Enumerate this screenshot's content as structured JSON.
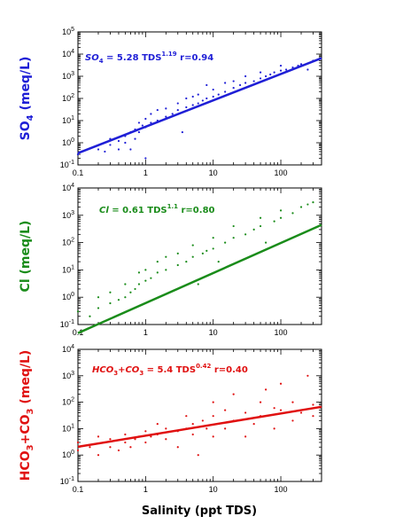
{
  "chart_data": [
    {
      "type": "scatter",
      "xlabel": "",
      "ylabel": "SO4 (meq/L)",
      "y_species": "SO",
      "y_sub": "4",
      "y_unit": " (meq/L)",
      "x_scale": "log",
      "y_scale": "log",
      "xlim": [
        0.1,
        400
      ],
      "ylim": [
        0.1,
        100000
      ],
      "xtick_labels": [
        "0.1",
        "1",
        "10",
        "100"
      ],
      "ytick_labels": [
        "10-1",
        "100",
        "101",
        "102",
        "103",
        "104",
        "105"
      ],
      "color": "#1f1fd6",
      "fit": {
        "a": 5.28,
        "b": 1.19
      },
      "equation": {
        "lhs": "SO",
        "lhs_sub": "4",
        "mid": " = 5.28 TDS",
        "exp": "1.19",
        "r": "r=0.94"
      },
      "points": [
        [
          0.1,
          0.3
        ],
        [
          0.2,
          0.5
        ],
        [
          0.25,
          0.4
        ],
        [
          0.3,
          0.8
        ],
        [
          0.3,
          1.5
        ],
        [
          0.4,
          0.5
        ],
        [
          0.4,
          1.2
        ],
        [
          0.5,
          1.0
        ],
        [
          0.5,
          2.0
        ],
        [
          0.6,
          0.5
        ],
        [
          0.6,
          3.0
        ],
        [
          0.7,
          1.5
        ],
        [
          0.7,
          4.0
        ],
        [
          0.8,
          3.0
        ],
        [
          0.8,
          8.0
        ],
        [
          0.9,
          6.0
        ],
        [
          1.0,
          0.2
        ],
        [
          1.0,
          5.0
        ],
        [
          1.0,
          12.0
        ],
        [
          1.2,
          8.0
        ],
        [
          1.2,
          20.0
        ],
        [
          1.5,
          10.0
        ],
        [
          1.5,
          30.0
        ],
        [
          2.0,
          15.0
        ],
        [
          2.0,
          35.0
        ],
        [
          2.5,
          20.0
        ],
        [
          3.0,
          30.0
        ],
        [
          3.0,
          60.0
        ],
        [
          3.5,
          3.0
        ],
        [
          4.0,
          40.0
        ],
        [
          4.0,
          100.0
        ],
        [
          5.0,
          50.0
        ],
        [
          5.0,
          120.0
        ],
        [
          6.0,
          60.0
        ],
        [
          6.0,
          150.0
        ],
        [
          7.0,
          80.0
        ],
        [
          8.0,
          100.0
        ],
        [
          8.0,
          400.0
        ],
        [
          10.0,
          120.0
        ],
        [
          10.0,
          250.0
        ],
        [
          12.0,
          150.0
        ],
        [
          15.0,
          200.0
        ],
        [
          15.0,
          500.0
        ],
        [
          20.0,
          300.0
        ],
        [
          20.0,
          600.0
        ],
        [
          25.0,
          400.0
        ],
        [
          30.0,
          500.0
        ],
        [
          30.0,
          1000.0
        ],
        [
          40.0,
          600.0
        ],
        [
          50.0,
          800.0
        ],
        [
          50.0,
          1500.0
        ],
        [
          60.0,
          1000.0
        ],
        [
          70.0,
          1200.0
        ],
        [
          80.0,
          1500.0
        ],
        [
          100.0,
          1800.0
        ],
        [
          100.0,
          3000.0
        ],
        [
          120.0,
          2000.0
        ],
        [
          150.0,
          2500.0
        ],
        [
          180.0,
          3000.0
        ],
        [
          200.0,
          3500.0
        ],
        [
          250.0,
          2000.0
        ],
        [
          300.0,
          5000.0
        ]
      ]
    },
    {
      "type": "scatter",
      "xlabel": "",
      "ylabel": "Cl (meq/L)",
      "y_species": "Cl",
      "y_sub": "",
      "y_unit": " (meq/L)",
      "x_scale": "log",
      "y_scale": "log",
      "xlim": [
        0.1,
        400
      ],
      "ylim": [
        0.1,
        10000
      ],
      "xtick_labels": [
        "0.1",
        "1",
        "10",
        "100"
      ],
      "ytick_labels": [
        "10-1",
        "100",
        "101",
        "102",
        "103",
        "104"
      ],
      "color": "#1a8c1a",
      "fit": {
        "a": 0.61,
        "b": 1.1
      },
      "equation": {
        "lhs": "Cl",
        "lhs_sub": "",
        "mid": " = 0.61 TDS",
        "exp": "1.1",
        "r": "r=0.80"
      },
      "points": [
        [
          0.1,
          0.3
        ],
        [
          0.15,
          0.2
        ],
        [
          0.2,
          0.4
        ],
        [
          0.2,
          1.0
        ],
        [
          0.3,
          0.6
        ],
        [
          0.3,
          1.5
        ],
        [
          0.4,
          0.8
        ],
        [
          0.5,
          1.0
        ],
        [
          0.5,
          3.0
        ],
        [
          0.6,
          1.5
        ],
        [
          0.7,
          2.0
        ],
        [
          0.8,
          3.0
        ],
        [
          0.8,
          8.0
        ],
        [
          1.0,
          4.0
        ],
        [
          1.0,
          10.0
        ],
        [
          1.2,
          5.0
        ],
        [
          1.5,
          8.0
        ],
        [
          1.5,
          20.0
        ],
        [
          2.0,
          10.0
        ],
        [
          2.0,
          30.0
        ],
        [
          3.0,
          15.0
        ],
        [
          3.0,
          40.0
        ],
        [
          4.0,
          20.0
        ],
        [
          5.0,
          30.0
        ],
        [
          5.0,
          80.0
        ],
        [
          6.0,
          3.0
        ],
        [
          7.0,
          40.0
        ],
        [
          8.0,
          50.0
        ],
        [
          10.0,
          60.0
        ],
        [
          10.0,
          150.0
        ],
        [
          12.0,
          20.0
        ],
        [
          15.0,
          100.0
        ],
        [
          20.0,
          150.0
        ],
        [
          20.0,
          400.0
        ],
        [
          30.0,
          200.0
        ],
        [
          40.0,
          300.0
        ],
        [
          50.0,
          400.0
        ],
        [
          50.0,
          800.0
        ],
        [
          60.0,
          100.0
        ],
        [
          80.0,
          600.0
        ],
        [
          100.0,
          800.0
        ],
        [
          100.0,
          1500.0
        ],
        [
          150.0,
          1200.0
        ],
        [
          200.0,
          2000.0
        ],
        [
          250.0,
          2500.0
        ],
        [
          300.0,
          3000.0
        ]
      ]
    },
    {
      "type": "scatter",
      "xlabel": "Salinity (ppt TDS)",
      "ylabel": "HCO3+CO3 (meq/L)",
      "y_species": "HCO",
      "y_sub": "3",
      "y_unit": "+CO3 (meq/L)",
      "x_scale": "log",
      "y_scale": "log",
      "xlim": [
        0.1,
        400
      ],
      "ylim": [
        0.1,
        10000
      ],
      "xtick_labels": [
        "0.1",
        "1",
        "10",
        "100"
      ],
      "ytick_labels": [
        "10-1",
        "100",
        "101",
        "102",
        "103",
        "104"
      ],
      "color": "#e01010",
      "fit": {
        "a": 5.4,
        "b": 0.42
      },
      "equation": {
        "lhs": "HCO",
        "lhs_sub": "3",
        "mid": "+CO",
        "mid_sub": "3",
        "mid2": " = 5.4 TDS",
        "exp": "0.42",
        "r": "r=0.40"
      },
      "points": [
        [
          0.1,
          1.5
        ],
        [
          0.1,
          3.0
        ],
        [
          0.15,
          2.0
        ],
        [
          0.2,
          1.0
        ],
        [
          0.2,
          5.0
        ],
        [
          0.3,
          2.0
        ],
        [
          0.3,
          4.0
        ],
        [
          0.4,
          1.5
        ],
        [
          0.5,
          3.0
        ],
        [
          0.5,
          6.0
        ],
        [
          0.6,
          2.0
        ],
        [
          0.7,
          4.0
        ],
        [
          0.8,
          5.0
        ],
        [
          1.0,
          3.0
        ],
        [
          1.0,
          8.0
        ],
        [
          1.2,
          5.0
        ],
        [
          1.5,
          6.0
        ],
        [
          1.5,
          15.0
        ],
        [
          2.0,
          4.0
        ],
        [
          2.0,
          10.0
        ],
        [
          3.0,
          2.0
        ],
        [
          3.0,
          8.0
        ],
        [
          4.0,
          10.0
        ],
        [
          4.0,
          30.0
        ],
        [
          5.0,
          6.0
        ],
        [
          5.0,
          15.0
        ],
        [
          6.0,
          1.0
        ],
        [
          7.0,
          20.0
        ],
        [
          8.0,
          10.0
        ],
        [
          10.0,
          5.0
        ],
        [
          10.0,
          30.0
        ],
        [
          10.0,
          100.0
        ],
        [
          15.0,
          10.0
        ],
        [
          15.0,
          50.0
        ],
        [
          20.0,
          20.0
        ],
        [
          20.0,
          200.0
        ],
        [
          30.0,
          5.0
        ],
        [
          30.0,
          40.0
        ],
        [
          40.0,
          15.0
        ],
        [
          50.0,
          30.0
        ],
        [
          50.0,
          100.0
        ],
        [
          60.0,
          300.0
        ],
        [
          80.0,
          10.0
        ],
        [
          80.0,
          60.0
        ],
        [
          100.0,
          50.0
        ],
        [
          100.0,
          500.0
        ],
        [
          150.0,
          20.0
        ],
        [
          150.0,
          100.0
        ],
        [
          200.0,
          40.0
        ],
        [
          250.0,
          1000.0
        ],
        [
          300.0,
          30.0
        ],
        [
          300.0,
          80.0
        ]
      ]
    }
  ]
}
